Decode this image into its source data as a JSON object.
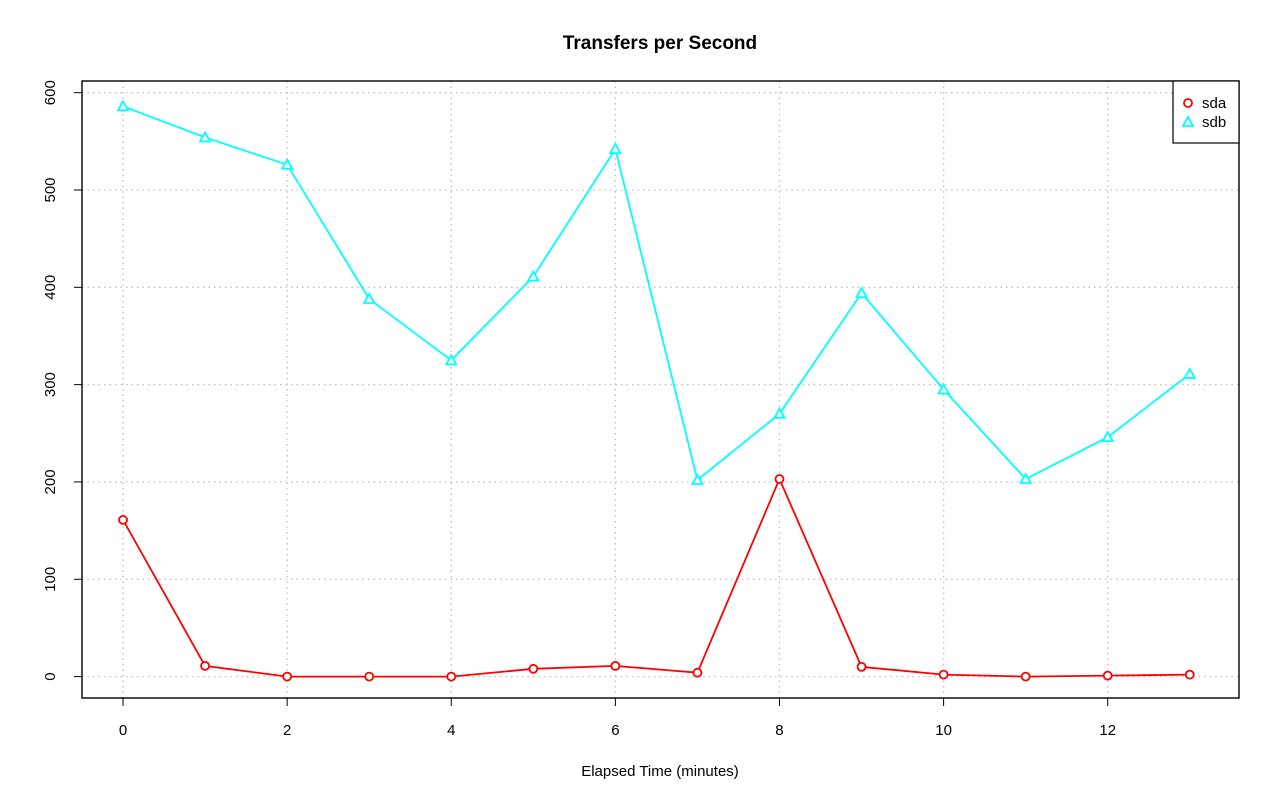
{
  "chart_data": {
    "type": "line",
    "title": "Transfers per Second",
    "xlabel": "Elapsed Time (minutes)",
    "ylabel": "",
    "x": [
      0,
      1,
      2,
      3,
      4,
      5,
      6,
      7,
      8,
      9,
      10,
      11,
      12,
      13
    ],
    "xlim": [
      -0.5,
      13.6
    ],
    "ylim": [
      -22,
      612
    ],
    "x_ticks": [
      0,
      2,
      4,
      6,
      8,
      10,
      12
    ],
    "y_ticks": [
      0,
      100,
      200,
      300,
      400,
      500,
      600
    ],
    "grid": true,
    "legend_position": "top-right",
    "series": [
      {
        "name": "sda",
        "color": "#ff0000",
        "marker": "circle",
        "values": [
          161,
          11,
          0,
          0,
          0,
          8,
          11,
          4,
          203,
          10,
          2,
          0,
          1,
          2
        ]
      },
      {
        "name": "sdb",
        "color": "#00ffff",
        "marker": "triangle",
        "values": [
          586,
          554,
          526,
          388,
          325,
          411,
          542,
          202,
          270,
          394,
          295,
          203,
          246,
          311
        ]
      }
    ]
  }
}
